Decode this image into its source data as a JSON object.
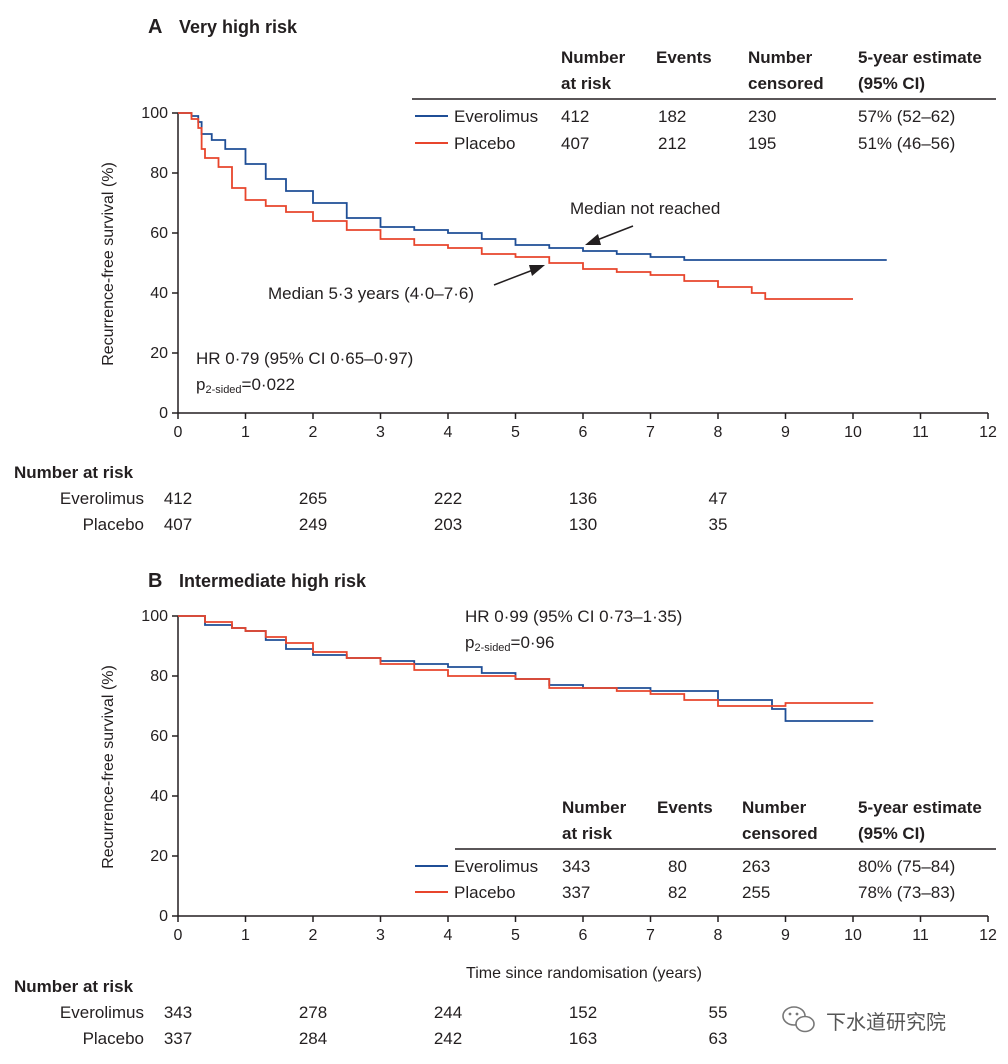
{
  "chart_data": [
    {
      "type": "line",
      "panel_label": "A",
      "title": "Very high risk",
      "xlabel": "",
      "ylabel": "Recurrence-free survival (%)",
      "xlim": [
        0,
        12
      ],
      "ylim": [
        0,
        100
      ],
      "xticks": [
        "0",
        "1",
        "2",
        "3",
        "4",
        "5",
        "6",
        "7",
        "8",
        "9",
        "10",
        "11",
        "12"
      ],
      "yticks": [
        "0",
        "20",
        "40",
        "60",
        "80",
        "100"
      ],
      "series": [
        {
          "name": "Everolimus",
          "color": "#1f4e96",
          "x": [
            0,
            0.2,
            0.3,
            0.35,
            0.5,
            0.7,
            1.0,
            1.3,
            1.6,
            2.0,
            2.5,
            3.0,
            3.5,
            4.0,
            4.5,
            5.0,
            5.5,
            6.0,
            6.5,
            7.0,
            7.5,
            8.0,
            9.0,
            10.0,
            10.5
          ],
          "y": [
            100,
            99,
            97,
            93,
            91,
            88,
            83,
            78,
            74,
            70,
            65,
            62,
            61,
            60,
            58,
            56,
            55,
            54,
            53,
            52,
            51,
            51,
            51,
            51,
            51
          ]
        },
        {
          "name": "Placebo",
          "color": "#e8452c",
          "x": [
            0,
            0.2,
            0.3,
            0.35,
            0.4,
            0.6,
            0.8,
            1.0,
            1.3,
            1.6,
            2.0,
            2.5,
            3.0,
            3.5,
            4.0,
            4.5,
            5.0,
            5.5,
            6.0,
            6.5,
            7.0,
            7.5,
            8.0,
            8.5,
            8.7,
            9.0,
            10.0
          ],
          "y": [
            100,
            98,
            95,
            88,
            85,
            82,
            75,
            71,
            69,
            67,
            64,
            61,
            58,
            56,
            55,
            53,
            52,
            50,
            48,
            47,
            46,
            44,
            42,
            40,
            38,
            38,
            38
          ]
        }
      ],
      "table": {
        "headers": [
          "Number\nat risk",
          "Events",
          "Number\ncensored",
          "5-year estimate\n(95% CI)"
        ],
        "rows": [
          {
            "name": "Everolimus",
            "at_risk": "412",
            "events": "182",
            "censored": "230",
            "estimate": "57% (52–62)"
          },
          {
            "name": "Placebo",
            "at_risk": "407",
            "events": "212",
            "censored": "195",
            "estimate": "51% (46–56)"
          }
        ]
      },
      "annotations": {
        "median_everolimus": "Median not reached",
        "median_placebo": "Median 5·3 years (4·0–7·6)",
        "hr": "HR 0·79 (95% CI 0·65–0·97)",
        "p_prefix": "p",
        "p_sub": "2-sided",
        "p_value": "=0·022"
      },
      "risk_table": {
        "title": "Number at risk",
        "times": [
          0,
          2,
          4,
          6,
          8
        ],
        "rows": [
          {
            "name": "Everolimus",
            "values": [
              "412",
              "265",
              "222",
              "136",
              "47"
            ]
          },
          {
            "name": "Placebo",
            "values": [
              "407",
              "249",
              "203",
              "130",
              "35"
            ]
          }
        ]
      }
    },
    {
      "type": "line",
      "panel_label": "B",
      "title": "Intermediate high risk",
      "xlabel": "Time since randomisation (years)",
      "ylabel": "Recurrence-free survival (%)",
      "xlim": [
        0,
        12
      ],
      "ylim": [
        0,
        100
      ],
      "xticks": [
        "0",
        "1",
        "2",
        "3",
        "4",
        "5",
        "6",
        "7",
        "8",
        "9",
        "10",
        "11",
        "12"
      ],
      "yticks": [
        "0",
        "20",
        "40",
        "60",
        "80",
        "100"
      ],
      "series": [
        {
          "name": "Everolimus",
          "color": "#1f4e96",
          "x": [
            0,
            0.4,
            0.8,
            1.0,
            1.3,
            1.6,
            2.0,
            2.5,
            3.0,
            3.5,
            4.0,
            4.5,
            5.0,
            5.5,
            6.0,
            6.5,
            7.0,
            7.5,
            7.9,
            8.0,
            8.5,
            8.8,
            9.0,
            10.0,
            10.3
          ],
          "y": [
            100,
            97,
            96,
            95,
            92,
            89,
            87,
            86,
            85,
            84,
            83,
            81,
            79,
            77,
            76,
            76,
            75,
            75,
            75,
            72,
            72,
            69,
            65,
            65,
            65
          ]
        },
        {
          "name": "Placebo",
          "color": "#e8452c",
          "x": [
            0,
            0.4,
            0.8,
            1.0,
            1.3,
            1.6,
            2.0,
            2.5,
            3.0,
            3.5,
            4.0,
            4.5,
            5.0,
            5.5,
            6.0,
            6.5,
            7.0,
            7.5,
            8.0,
            8.5,
            9.0,
            10.0,
            10.3
          ],
          "y": [
            100,
            98,
            96,
            95,
            93,
            91,
            88,
            86,
            84,
            82,
            80,
            80,
            79,
            76,
            76,
            75,
            74,
            72,
            70,
            70,
            71,
            71,
            71
          ]
        }
      ],
      "table": {
        "headers": [
          "Number\nat risk",
          "Events",
          "Number\ncensored",
          "5-year estimate\n(95% CI)"
        ],
        "rows": [
          {
            "name": "Everolimus",
            "at_risk": "343",
            "events": "80",
            "censored": "263",
            "estimate": "80% (75–84)"
          },
          {
            "name": "Placebo",
            "at_risk": "337",
            "events": "82",
            "censored": "255",
            "estimate": "78% (73–83)"
          }
        ]
      },
      "annotations": {
        "hr": "HR 0·99 (95% CI 0·73–1·35)",
        "p_prefix": "p",
        "p_sub": "2-sided",
        "p_value": "=0·96"
      },
      "risk_table": {
        "title": "Number at risk",
        "times": [
          0,
          2,
          4,
          6,
          8
        ],
        "rows": [
          {
            "name": "Everolimus",
            "values": [
              "343",
              "278",
              "244",
              "152",
              "55"
            ]
          },
          {
            "name": "Placebo",
            "values": [
              "337",
              "284",
              "242",
              "163",
              "63"
            ]
          }
        ]
      }
    }
  ],
  "watermark": {
    "text": "下水道研究院",
    "icon": "wechat-icon"
  }
}
